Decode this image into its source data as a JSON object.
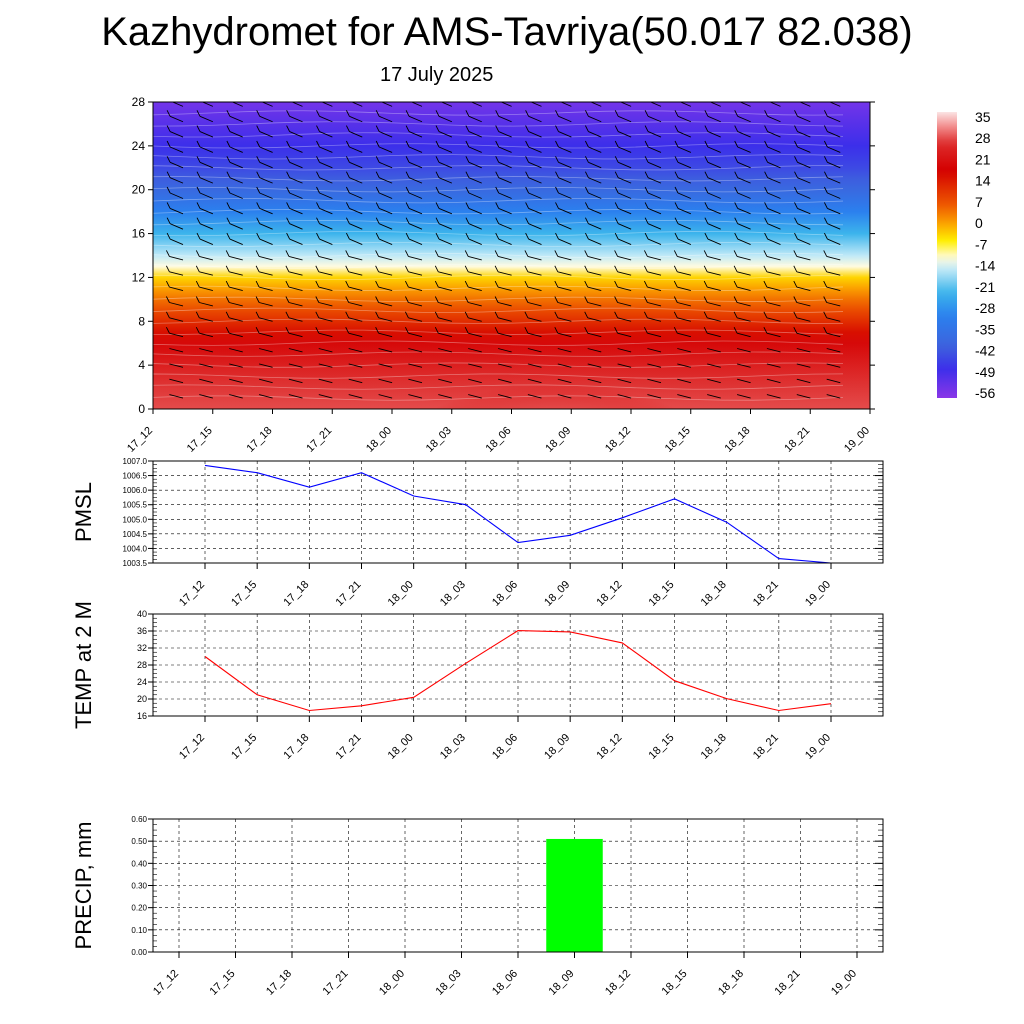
{
  "title": "Kazhydromet for AMS-Tavriya(50.017 82.038)",
  "subtitle": "17 July 2025",
  "time_labels": [
    "17_12",
    "17_15",
    "17_18",
    "17_21",
    "18_00",
    "18_03",
    "18_06",
    "18_09",
    "18_12",
    "18_15",
    "18_18",
    "18_21",
    "19_00"
  ],
  "chart_data": [
    {
      "type": "heatmap",
      "panel": "cross-section",
      "y_ticks": [
        0,
        4,
        8,
        12,
        16,
        20,
        24,
        28
      ],
      "ylim": [
        0,
        28
      ],
      "x": [
        "17_12",
        "17_15",
        "17_18",
        "17_21",
        "18_00",
        "18_03",
        "18_06",
        "18_09",
        "18_12",
        "18_15",
        "18_18",
        "18_21",
        "19_00"
      ],
      "colorbar_labels": [
        "35",
        "28",
        "21",
        "14",
        "7",
        "0",
        "-7",
        "-14",
        "-21",
        "-28",
        "-35",
        "-42",
        "-49",
        "-56"
      ],
      "colorbar_range": [
        -60,
        38
      ],
      "has_wind_barbs": true,
      "palette": [
        {
          "v": 38,
          "c": "#fbe4e4"
        },
        {
          "v": 33,
          "c": "#f28c8c"
        },
        {
          "v": 27,
          "c": "#dd2a2a"
        },
        {
          "v": 18,
          "c": "#d40000"
        },
        {
          "v": 6,
          "c": "#ee5a00"
        },
        {
          "v": 0,
          "c": "#fba000"
        },
        {
          "v": -6,
          "c": "#ffee00"
        },
        {
          "v": -12,
          "c": "#fffbe0"
        },
        {
          "v": -16,
          "c": "#bfe9f7"
        },
        {
          "v": -24,
          "c": "#3cb4ec"
        },
        {
          "v": -32,
          "c": "#2b80ee"
        },
        {
          "v": -42,
          "c": "#3d63dd"
        },
        {
          "v": -50,
          "c": "#3c2fea"
        },
        {
          "v": -60,
          "c": "#8a36e8"
        }
      ]
    },
    {
      "type": "line",
      "ylabel": "PMSL",
      "x": [
        "17_12",
        "17_15",
        "17_18",
        "17_21",
        "18_00",
        "18_03",
        "18_06",
        "18_09",
        "18_12",
        "18_15",
        "18_18",
        "18_21",
        "19_00"
      ],
      "values": [
        1006.85,
        1006.6,
        1006.1,
        1006.6,
        1005.8,
        1005.5,
        1004.2,
        1004.45,
        1005.05,
        1005.7,
        1004.9,
        1003.65,
        1003.5
      ],
      "ylim": [
        1003.5,
        1007.0
      ],
      "y_ticks": [
        "1003.5",
        "1004.0",
        "1004.5",
        "1005.0",
        "1005.5",
        "1006.0",
        "1006.5",
        "1007.0"
      ],
      "color": "#0000ff",
      "grid": true
    },
    {
      "type": "line",
      "ylabel": "TEMP at 2 M",
      "x": [
        "17_12",
        "17_15",
        "17_18",
        "17_21",
        "18_00",
        "18_03",
        "18_06",
        "18_09",
        "18_12",
        "18_15",
        "18_18",
        "18_21",
        "19_00"
      ],
      "values": [
        30,
        21,
        17.3,
        18.4,
        20.4,
        28.4,
        36.1,
        35.8,
        33.2,
        24.3,
        20.1,
        17.3,
        18.9
      ],
      "ylim": [
        16,
        40
      ],
      "y_ticks": [
        "16",
        "20",
        "24",
        "28",
        "32",
        "36",
        "40"
      ],
      "color": "#ff0000",
      "grid": true
    },
    {
      "type": "bar",
      "ylabel": "PRECIP, mm",
      "x": [
        "17_12",
        "17_15",
        "17_18",
        "17_21",
        "18_00",
        "18_03",
        "18_06",
        "18_09",
        "18_12",
        "18_15",
        "18_18",
        "18_21",
        "19_00"
      ],
      "values": [
        0,
        0,
        0,
        0,
        0,
        0,
        0,
        0.51,
        0,
        0,
        0,
        0,
        0
      ],
      "ylim": [
        0,
        0.6
      ],
      "y_ticks": [
        "0.00",
        "0.10",
        "0.20",
        "0.30",
        "0.40",
        "0.50",
        "0.60"
      ],
      "color": "#00ff00",
      "grid": true
    }
  ]
}
